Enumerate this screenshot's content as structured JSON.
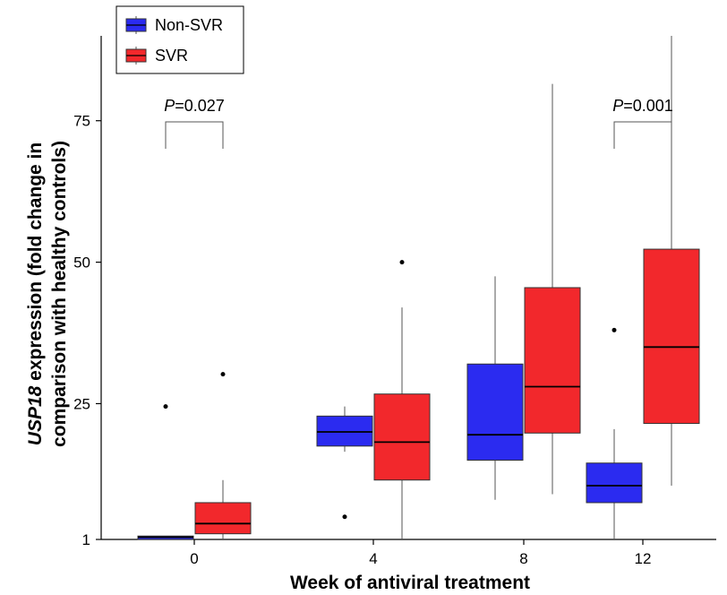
{
  "chart_data": {
    "type": "box",
    "title": "",
    "xlabel": "Week of antiviral treatment",
    "ylabel_italic": "USP18",
    "ylabel_rest_line1": " expression (fold change in",
    "ylabel_line2": "comparison with healthy controls)",
    "categories": [
      "0",
      "4",
      "8",
      "12"
    ],
    "y_ticks": [
      1,
      25,
      50,
      75
    ],
    "y_tick_labels": [
      "1",
      "25",
      "50",
      "75"
    ],
    "ylim": [
      1,
      90
    ],
    "legend": {
      "placement": "top-left",
      "items": [
        {
          "label": "Non-SVR",
          "color": "#2b2bf0"
        },
        {
          "label": "SVR",
          "color": "#f2282c"
        }
      ]
    },
    "series": [
      {
        "name": "Non-SVR",
        "color": "#2b2bf0",
        "boxes": [
          {
            "category": "0",
            "q1": 1.0,
            "median": 1.4,
            "q3": 1.6,
            "whisker_low": 1.0,
            "whisker_high": 1.6,
            "outliers": [
              24.5
            ]
          },
          {
            "category": "4",
            "q1": 17.5,
            "median": 20.0,
            "q3": 22.8,
            "whisker_low": 16.5,
            "whisker_high": 24.5,
            "outliers": [
              5.0
            ]
          },
          {
            "category": "8",
            "q1": 15.0,
            "median": 19.5,
            "q3": 32.0,
            "whisker_low": 8.0,
            "whisker_high": 47.5,
            "outliers": []
          },
          {
            "category": "12",
            "q1": 7.5,
            "median": 10.5,
            "q3": 14.5,
            "whisker_low": 1.0,
            "whisker_high": 20.5,
            "outliers": [
              38.0
            ]
          }
        ]
      },
      {
        "name": "SVR",
        "color": "#f2282c",
        "boxes": [
          {
            "category": "0",
            "q1": 2.0,
            "median": 3.8,
            "q3": 7.5,
            "whisker_low": 1.0,
            "whisker_high": 11.5,
            "outliers": [
              30.2
            ]
          },
          {
            "category": "4",
            "q1": 11.5,
            "median": 18.2,
            "q3": 26.7,
            "whisker_low": 1.0,
            "whisker_high": 42.0,
            "outliers": [
              50.0
            ]
          },
          {
            "category": "8",
            "q1": 19.8,
            "median": 28.0,
            "q3": 45.5,
            "whisker_low": 9.0,
            "whisker_high": 81.5,
            "outliers": []
          },
          {
            "category": "12",
            "q1": 21.5,
            "median": 35.0,
            "q3": 52.3,
            "whisker_low": 10.5,
            "whisker_high": 90.0,
            "outliers": []
          }
        ]
      }
    ],
    "annotations": [
      {
        "category": "0",
        "p_label": "P",
        "p_value": "=0.027"
      },
      {
        "category": "12",
        "p_label": "P",
        "p_value": "=0.001"
      }
    ]
  }
}
